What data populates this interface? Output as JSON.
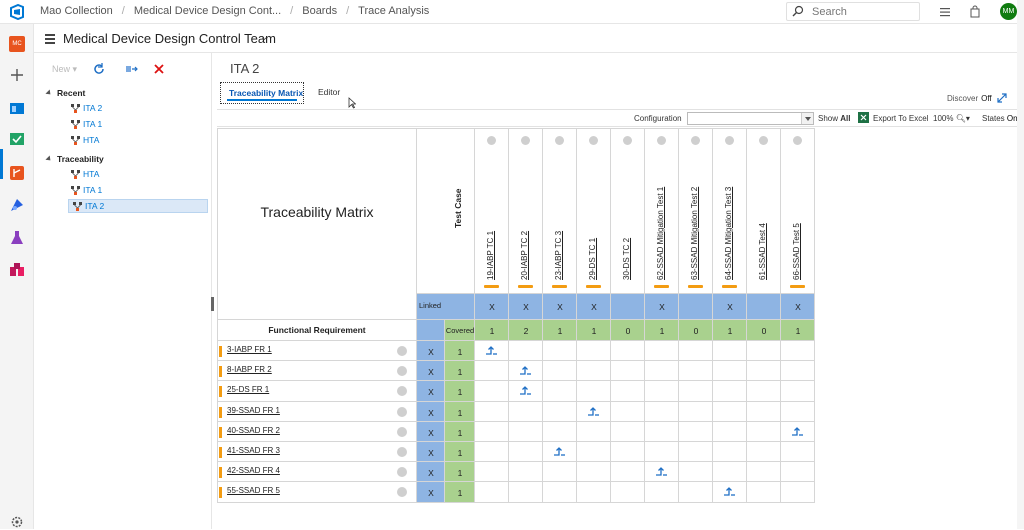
{
  "topbar": {
    "breadcrumbs": [
      "Mao Collection",
      "Medical Device Design Cont...",
      "Boards",
      "Trace Analysis"
    ],
    "search_placeholder": "Search",
    "avatar_initials": "MM"
  },
  "rail": {
    "org_badge": "MC",
    "items": [
      "add-icon",
      "boards-icon",
      "trace-icon",
      "repos-icon",
      "pipelines-icon",
      "test-plans-icon",
      "artifacts-icon",
      "settings-icon"
    ]
  },
  "team": {
    "name": "Medical Device Design Control Team"
  },
  "left_panel": {
    "new_label": "New",
    "groups": [
      {
        "label": "Recent",
        "items": [
          "ITA 2",
          "ITA 1",
          "HTA"
        ]
      },
      {
        "label": "Traceability",
        "items": [
          "HTA",
          "ITA 1",
          "ITA 2"
        ]
      }
    ],
    "selected": "ITA 2"
  },
  "main": {
    "title": "ITA 2",
    "tabs": [
      "Traceability Matrix",
      "Editor"
    ],
    "active_tab": "Traceability Matrix",
    "discover_label": "Discover",
    "discover_value": "Off"
  },
  "toolbar": {
    "configuration_label": "Configuration",
    "show_label": "Show",
    "show_value": "All",
    "export_label": "Export To Excel",
    "zoom_label": "100%",
    "states_label": "States",
    "states_value": "On"
  },
  "matrix": {
    "title": "Traceability Matrix",
    "column_header": "Test Case",
    "row_header": "Functional Requirement",
    "linked_label": "Linked",
    "covered_label": "Covered",
    "columns": [
      "19-IABP TC 1",
      "20-IABP TC 2",
      "23-IABP TC 3",
      "29-DS TC 1",
      "30-DS TC 2",
      "62-SSAD Mitigation Test 1",
      "63-SSAD Mitigation Test 2",
      "64-SSAD Mitigation Test 3",
      "61-SSAD Test 4",
      "66-SSAD Test 5"
    ],
    "column_state_bar": [
      true,
      true,
      true,
      true,
      false,
      true,
      true,
      true,
      false,
      true
    ],
    "column_linked": [
      "X",
      "X",
      "X",
      "X",
      "",
      "X",
      "",
      "X",
      "",
      "X"
    ],
    "column_covered": [
      "1",
      "2",
      "1",
      "1",
      "0",
      "1",
      "0",
      "1",
      "0",
      "1"
    ],
    "rows": [
      {
        "label": "3-IABP FR 1",
        "linked": "X",
        "covered": "1",
        "link_col": 0
      },
      {
        "label": "8-IABP FR 2",
        "linked": "X",
        "covered": "1",
        "link_col": 1
      },
      {
        "label": "25-DS FR 1",
        "linked": "X",
        "covered": "1",
        "link_col": 1
      },
      {
        "label": "39-SSAD FR 1",
        "linked": "X",
        "covered": "1",
        "link_col": 3
      },
      {
        "label": "40-SSAD FR 2",
        "linked": "X",
        "covered": "1",
        "link_col": 9
      },
      {
        "label": "41-SSAD FR 3",
        "linked": "X",
        "covered": "1",
        "link_col": 2
      },
      {
        "label": "42-SSAD FR 4",
        "linked": "X",
        "covered": "1",
        "link_col": 5
      },
      {
        "label": "55-SSAD FR 5",
        "linked": "X",
        "covered": "1",
        "link_col": 7
      }
    ]
  },
  "colors": {
    "accent": "#0078d4",
    "linked_blue": "#8eb4e3",
    "covered_green": "#a9d18e",
    "state_orange": "#f39c12"
  }
}
